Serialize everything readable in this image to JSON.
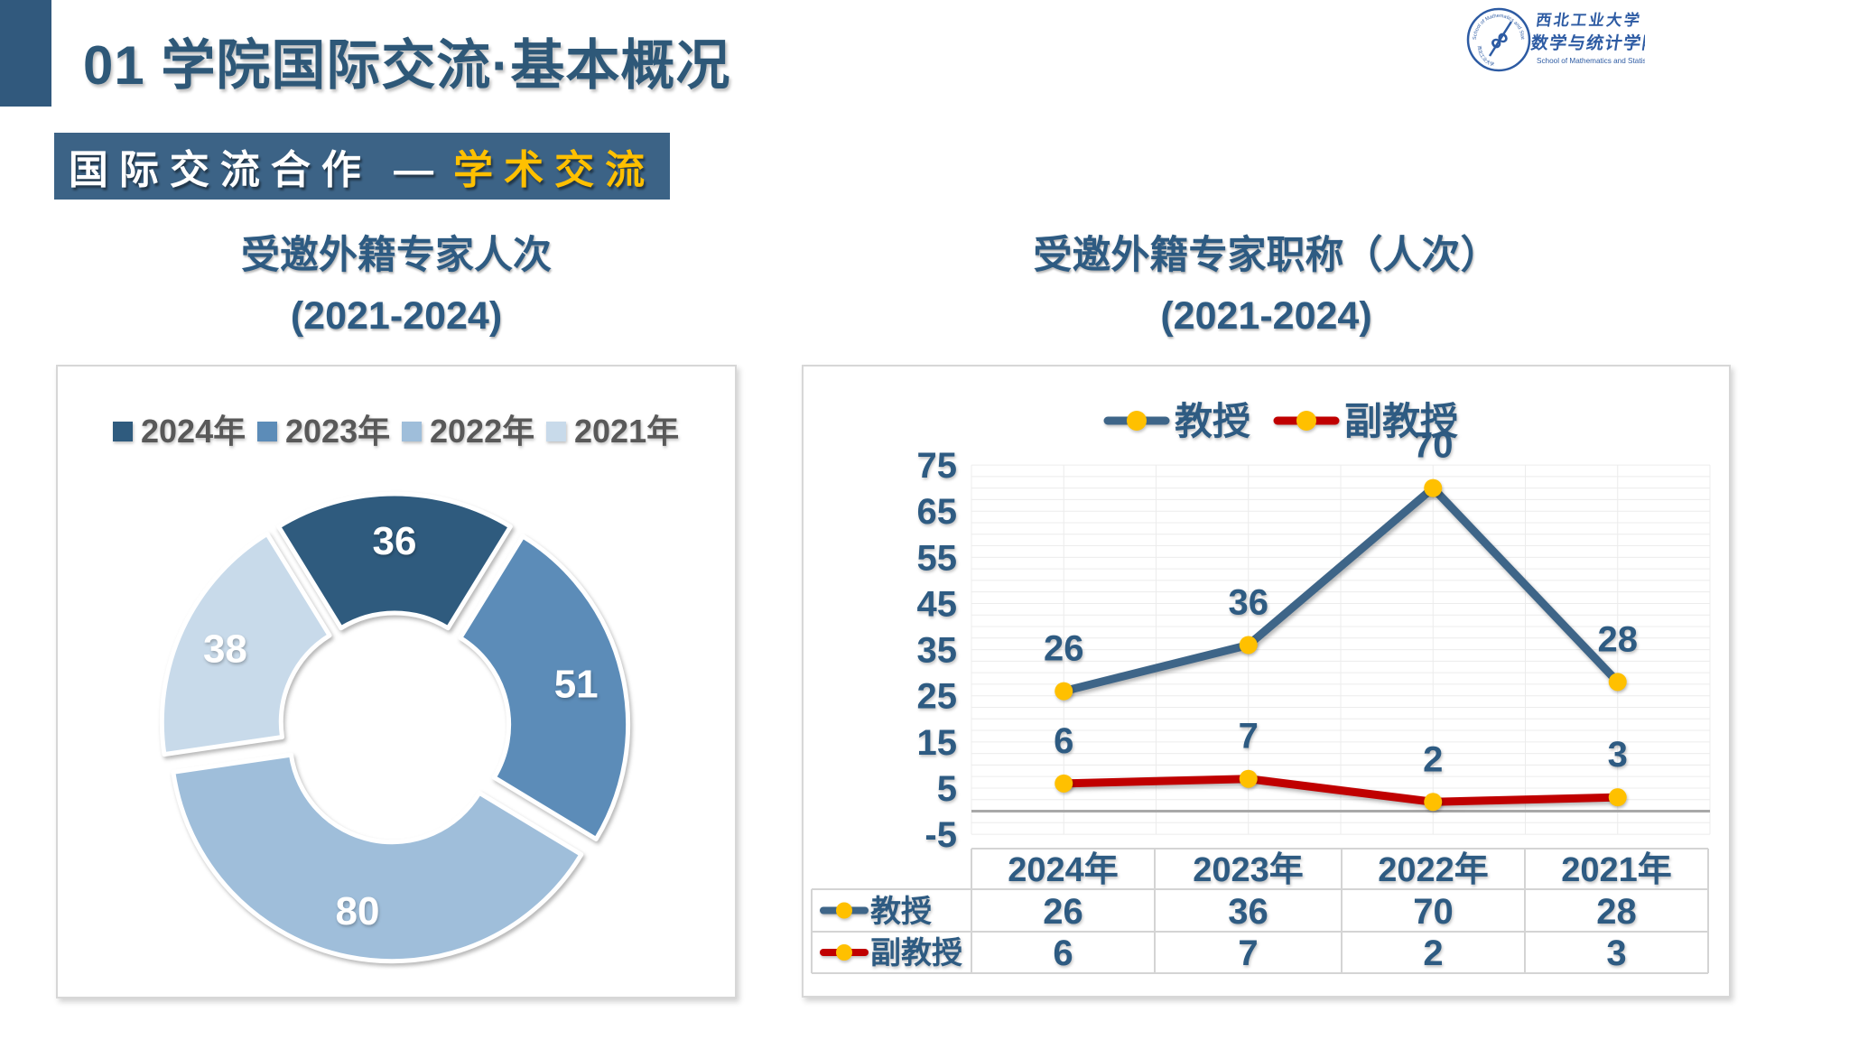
{
  "header": {
    "title": "01 学院国际交流·基本概况",
    "accent_color": "#31597D",
    "title_color": "#2E5878"
  },
  "banner": {
    "text_white": "国际交流合作 —",
    "text_gold": "学术交流",
    "bg_color": "#3C6386",
    "gold_color": "#FFC000"
  },
  "logo": {
    "org_cn": "西北工业大学",
    "school_cn": "数学与统计学院",
    "school_en": "School of Mathematics and Statistics, NPU",
    "ring_text": "School of Mathematics and Statistics, NPU",
    "blue": "#2D5BA3"
  },
  "chart_data": [
    {
      "type": "pie",
      "title": "受邀外籍专家人次",
      "subtitle": "(2021-2024)",
      "donut": true,
      "exploded": true,
      "first_slice_centered_top": true,
      "legend_position": "top",
      "categories": [
        "2024年",
        "2023年",
        "2022年",
        "2021年"
      ],
      "values": [
        36,
        51,
        80,
        38
      ],
      "colors": [
        "#2F5B7E",
        "#5C8CB8",
        "#9FBEDA",
        "#C8DAEA"
      ],
      "label_color": "#FFFFFF",
      "legend_text_color": "#595959"
    },
    {
      "type": "line",
      "title": "受邀外籍专家职称（人次）",
      "subtitle": "(2021-2024)",
      "legend_position": "top",
      "grid": true,
      "data_table_shown": true,
      "categories": [
        "2024年",
        "2023年",
        "2022年",
        "2021年"
      ],
      "series": [
        {
          "name": "教授",
          "values": [
            26,
            36,
            70,
            28
          ],
          "color": "#3E6588"
        },
        {
          "name": "副教授",
          "values": [
            6,
            7,
            2,
            3
          ],
          "color": "#C00000"
        }
      ],
      "marker_color": "#FFC000",
      "ylim": [
        -5,
        75
      ],
      "yticks": [
        75,
        65,
        55,
        45,
        35,
        25,
        15,
        5,
        -5
      ],
      "minor_grid_step": 2.5,
      "text_color": "#2E5B82",
      "grid_color": "#ECECEC",
      "axis_line_color": "#A8A8A8",
      "table_border_color": "#D4D4D4"
    }
  ]
}
